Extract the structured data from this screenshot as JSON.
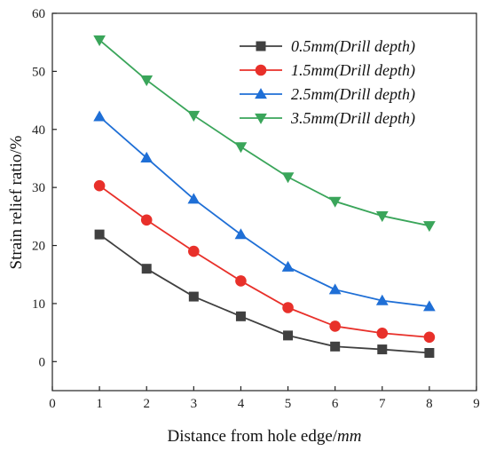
{
  "chart_data": {
    "type": "line",
    "title": "",
    "xlabel_prefix": "Distance from hole edge/",
    "xlabel_unit": "mm",
    "ylabel": "Strain relief ratio/%",
    "xlim": [
      0,
      9
    ],
    "ylim": [
      -5,
      60
    ],
    "xticks": [
      "0",
      "1",
      "2",
      "3",
      "4",
      "5",
      "6",
      "7",
      "8",
      "9"
    ],
    "yticks": [
      "0",
      "10",
      "20",
      "30",
      "40",
      "50",
      "60"
    ],
    "grid": false,
    "legend_position": "top-right",
    "x": [
      1,
      2,
      3,
      4,
      5,
      6,
      7,
      8
    ],
    "series": [
      {
        "name": "0.5mm(Drill depth)",
        "color": "#404040",
        "marker": "square",
        "values": [
          21.9,
          16.0,
          11.2,
          7.8,
          4.5,
          2.6,
          2.1,
          1.5
        ]
      },
      {
        "name": "1.5mm(Drill depth)",
        "color": "#e8302a",
        "marker": "circle",
        "values": [
          30.3,
          24.4,
          19.0,
          13.9,
          9.3,
          6.1,
          4.9,
          4.2
        ]
      },
      {
        "name": "2.5mm(Drill depth)",
        "color": "#1f6fd6",
        "marker": "triangle-up",
        "values": [
          42.2,
          35.1,
          28.0,
          21.9,
          16.3,
          12.4,
          10.5,
          9.5
        ]
      },
      {
        "name": "3.5mm(Drill depth)",
        "color": "#3aa55a",
        "marker": "triangle-down",
        "values": [
          55.4,
          48.5,
          42.4,
          37.0,
          31.8,
          27.6,
          25.1,
          23.4
        ]
      }
    ]
  }
}
